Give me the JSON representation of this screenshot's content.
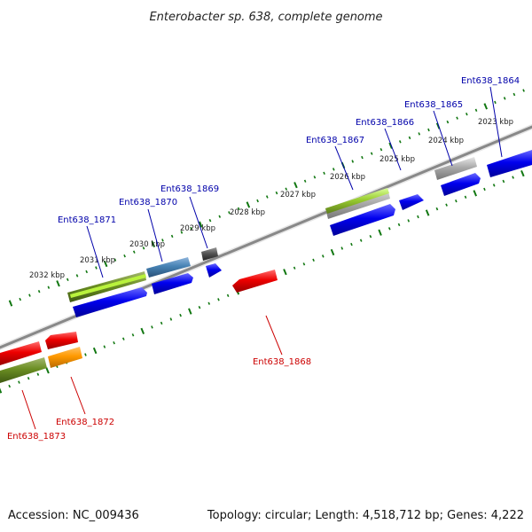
{
  "title": "Enterobacter sp. 638, complete genome",
  "footer": {
    "accession": "Accession: NC_009436",
    "topology": "Topology: circular; Length: 4,518,712 bp; Genes: 4,222"
  },
  "colors": {
    "forward_label": "#0000aa",
    "reverse_label": "#cc0000",
    "tick": "#117711",
    "backbone": "#888888"
  },
  "kbp_ticks": [
    "2023 kbp",
    "2024 kbp",
    "2025 kbp",
    "2026 kbp",
    "2027 kbp",
    "2028 kbp",
    "2029 kbp",
    "2030 kbp",
    "2031 kbp",
    "2032 kbp"
  ],
  "genes": [
    {
      "label": "Ent638_1864",
      "strand": "forward"
    },
    {
      "label": "Ent638_1865",
      "strand": "forward"
    },
    {
      "label": "Ent638_1866",
      "strand": "forward"
    },
    {
      "label": "Ent638_1867",
      "strand": "forward"
    },
    {
      "label": "Ent638_1868",
      "strand": "reverse"
    },
    {
      "label": "Ent638_1869",
      "strand": "forward"
    },
    {
      "label": "Ent638_1870",
      "strand": "forward"
    },
    {
      "label": "Ent638_1871",
      "strand": "forward"
    },
    {
      "label": "Ent638_1872",
      "strand": "reverse"
    },
    {
      "label": "Ent638_1873",
      "strand": "reverse"
    }
  ]
}
